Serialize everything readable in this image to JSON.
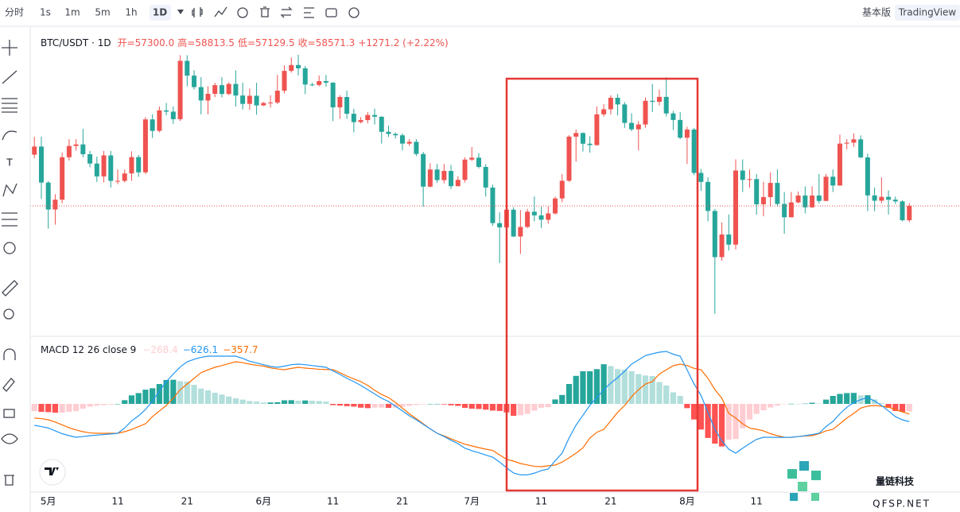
{
  "toolbar": {
    "intervals": [
      "分时",
      "1s",
      "1m",
      "5m",
      "1h",
      "1D"
    ],
    "views": [
      "基本版",
      "TradingView"
    ]
  },
  "watermark": {
    "name": "量链科技",
    "site": "QFSP.NET"
  },
  "chart_data": [
    {
      "type": "candlestick",
      "title": "BTC/USDT · 1D",
      "ohlc_labels": [
        "开=57300.0",
        "高=58813.5",
        "低=57129.5",
        "收=58571.3"
      ],
      "change_label": "+1271.2 (+2.22%)",
      "up_color": "#ef5350",
      "down_color": "#26a69a",
      "xlim": [
        -0.6,
        133.3
      ],
      "ylim": [
        47200,
        74030
      ],
      "open": [
        63120,
        63840,
        60640,
        58250,
        59120,
        62890,
        63890,
        64030,
        63160,
        62330,
        61190,
        63050,
        60790,
        60790,
        61450,
        62900,
        61550,
        66250,
        65230,
        67050,
        66940,
        66270,
        71450,
        70140,
        69120,
        67930,
        68520,
        69290,
        68510,
        69400,
        68370,
        67630,
        68350,
        67490,
        67710,
        67750,
        68800,
        70560,
        71080,
        70790,
        69350,
        69310,
        69650,
        69510,
        67320,
        68240,
        66750,
        66010,
        66190,
        66640,
        66490,
        65150,
        64960,
        64840,
        64100,
        64260,
        63180,
        60280,
        61800,
        60860,
        61670,
        60320,
        60880,
        62680,
        62850,
        62030,
        60200,
        57040,
        56660,
        58230,
        55850,
        56700,
        58050,
        57730,
        57340,
        57900,
        59230,
        60800,
        64720,
        65040,
        64090,
        63970,
        66700,
        67150,
        68170,
        67580,
        65940,
        65370,
        65800,
        67900,
        67810,
        68250,
        66780,
        66200,
        64620,
        65350,
        61500,
        60700,
        58120,
        54020,
        56030,
        55130,
        61710,
        60880,
        60950,
        58710,
        59350,
        60610,
        58740,
        57560,
        58880,
        59490,
        58440,
        59490,
        59010,
        61160,
        60380,
        64100,
        64180,
        64480,
        62880,
        59500,
        59030,
        59370,
        59120,
        58970,
        57300
      ],
      "high": [
        64700,
        64730,
        60780,
        59600,
        63300,
        64500,
        64500,
        65400,
        63450,
        62940,
        63450,
        63450,
        61800,
        61800,
        63420,
        63100,
        66450,
        66700,
        67400,
        67700,
        67400,
        71950,
        71950,
        70620,
        70000,
        69200,
        69500,
        70000,
        69550,
        70600,
        69500,
        69000,
        69500,
        67800,
        68400,
        70200,
        71050,
        71750,
        71990,
        71000,
        69500,
        70150,
        70200,
        69560,
        68400,
        68800,
        67200,
        66450,
        66900,
        67200,
        66500,
        65700,
        65100,
        65000,
        64500,
        64500,
        63370,
        62350,
        62300,
        62300,
        62200,
        61200,
        62880,
        63800,
        63250,
        62280,
        60450,
        58000,
        58500,
        58450,
        58200,
        58300,
        59400,
        58500,
        58500,
        59400,
        61400,
        64850,
        65350,
        65100,
        64750,
        67400,
        67600,
        68400,
        68500,
        67800,
        66800,
        66100,
        68200,
        69400,
        68900,
        70000,
        67000,
        66900,
        65600,
        65500,
        61850,
        61100,
        58300,
        57100,
        57800,
        62700,
        62700,
        61800,
        61400,
        60700,
        61550,
        61800,
        59800,
        59800,
        59850,
        60300,
        60300,
        61400,
        61400,
        61800,
        64900,
        64500,
        65000,
        64830,
        63200,
        60200,
        61100,
        59950,
        59400,
        59060,
        58813.5
      ],
      "low": [
        62800,
        59190,
        56550,
        56900,
        58800,
        62600,
        63480,
        62900,
        62000,
        60700,
        60650,
        60200,
        60500,
        60650,
        60800,
        61150,
        61400,
        64600,
        65100,
        66600,
        65850,
        66100,
        69200,
        68900,
        66700,
        66700,
        68230,
        68200,
        68400,
        67400,
        67130,
        67100,
        66670,
        67450,
        67300,
        67600,
        68550,
        70400,
        70150,
        68500,
        69210,
        69180,
        69150,
        66100,
        66300,
        66300,
        65100,
        65900,
        65900,
        65800,
        64100,
        64700,
        64550,
        63500,
        63900,
        63000,
        58500,
        60200,
        60620,
        60580,
        60070,
        60300,
        60650,
        62550,
        61900,
        59400,
        56800,
        53500,
        56300,
        55800,
        54300,
        56600,
        57200,
        56600,
        57000,
        57800,
        58900,
        60700,
        62500,
        63400,
        63300,
        63900,
        66500,
        66700,
        66600,
        65500,
        65200,
        63500,
        65500,
        66900,
        67500,
        66500,
        65300,
        64500,
        62300,
        61300,
        59900,
        57200,
        49000,
        53700,
        54600,
        54700,
        59800,
        60200,
        57800,
        57650,
        58500,
        58500,
        56100,
        57550,
        58800,
        57900,
        58400,
        58800,
        59000,
        59800,
        60350,
        63600,
        63800,
        62800,
        58100,
        58100,
        58800,
        57800,
        58740,
        57200,
        57129.5
      ],
      "close": [
        63840,
        60640,
        58250,
        59120,
        62890,
        63890,
        64030,
        63160,
        62330,
        61190,
        63050,
        60790,
        60790,
        61450,
        62900,
        61550,
        66250,
        65230,
        67050,
        66940,
        66270,
        71450,
        70140,
        69120,
        67930,
        68520,
        69290,
        68510,
        69400,
        68370,
        67630,
        68350,
        67490,
        67710,
        67750,
        68800,
        70560,
        71080,
        70790,
        69350,
        69310,
        69650,
        69510,
        67320,
        68240,
        66750,
        66010,
        66190,
        66640,
        66490,
        65150,
        64960,
        64840,
        64100,
        64260,
        63180,
        60280,
        61800,
        60860,
        61670,
        60320,
        60880,
        62680,
        62850,
        62030,
        60200,
        57040,
        56660,
        58230,
        55850,
        56700,
        58050,
        57730,
        57340,
        57900,
        59230,
        60800,
        64720,
        65040,
        64090,
        63970,
        66700,
        67150,
        68170,
        67580,
        65940,
        65370,
        65800,
        67900,
        67810,
        68250,
        66780,
        66200,
        64620,
        65350,
        61500,
        60700,
        58120,
        54020,
        56030,
        55130,
        61710,
        60880,
        60950,
        58710,
        59350,
        60610,
        58740,
        57560,
        58880,
        59490,
        58440,
        59490,
        59010,
        61160,
        60380,
        64100,
        64180,
        64480,
        62880,
        59500,
        59030,
        59370,
        59120,
        58970,
        57300,
        58571.3
      ]
    },
    {
      "type": "macd",
      "title": "MACD 12 26 close 9",
      "xlim": [
        -0.6,
        133.3
      ],
      "ylim": [
        -2912,
        2324
      ],
      "xticks": [
        {
          "value": 2,
          "label": "5月"
        },
        {
          "value": 12,
          "label": "11"
        },
        {
          "value": 22,
          "label": "21"
        },
        {
          "value": 33,
          "label": "6月"
        },
        {
          "value": 43,
          "label": "11"
        },
        {
          "value": 53,
          "label": "21"
        },
        {
          "value": 63,
          "label": "7月"
        },
        {
          "value": 73,
          "label": "11"
        },
        {
          "value": 83,
          "label": "21"
        },
        {
          "value": 94,
          "label": "8月"
        },
        {
          "value": 104,
          "label": "11"
        }
      ],
      "histogram": {
        "label": "−268.4",
        "colors": [
          "#26a69a",
          "#b2dfdb",
          "#ffcdd2",
          "#ff5252"
        ],
        "values": [
          -256,
          -280,
          -290,
          -310,
          -310,
          -280,
          -256,
          -170,
          -100,
          -64,
          -44,
          -24,
          0,
          130,
          300,
          380,
          500,
          550,
          700,
          840,
          850,
          800,
          784,
          670,
          540,
          480,
          392,
          330,
          260,
          196,
          150,
          100,
          80,
          50,
          50,
          58,
          126,
          130,
          112,
          120,
          110,
          100,
          78,
          -44,
          -60,
          -80,
          -96,
          -134,
          -150,
          -130,
          -130,
          -140,
          -130,
          -100,
          -70,
          -40,
          -20,
          0,
          0,
          -20,
          -50,
          -70,
          -140,
          -170,
          -180,
          -204,
          -236,
          -250,
          -300,
          -420,
          -400,
          -350,
          -240,
          -138,
          -116,
          156,
          314,
          700,
          986,
          1150,
          1150,
          1224,
          1396,
          1330,
          1224,
          1206,
          1150,
          1050,
          1000,
          980,
          770,
          648,
          406,
          280,
          -150,
          -550,
          -904,
          -1200,
          -1400,
          -1500,
          -1260,
          -1236,
          -860,
          -550,
          -354,
          -226,
          -126,
          -60,
          -4,
          4,
          0,
          10,
          40,
          14,
          150,
          280,
          350,
          380,
          386,
          300,
          304,
          156,
          24,
          -138,
          -250,
          -280,
          -268.4
        ]
      },
      "macd": {
        "label": "−626.1",
        "color": "#2196f3",
        "values": [
          -756,
          -800,
          -850,
          -950,
          -1050,
          -1120,
          -1176,
          -1150,
          -1120,
          -1100,
          -1080,
          -1060,
          -1036,
          -850,
          -600,
          -420,
          -200,
          100,
          450,
          784,
          1050,
          1300,
          1484,
          1570,
          1640,
          1680,
          1680,
          1680,
          1680,
          1680,
          1600,
          1500,
          1440,
          1380,
          1320,
          1288,
          1330,
          1380,
          1400,
          1380,
          1350,
          1320,
          1288,
          1160,
          1040,
          900,
          784,
          650,
          500,
          350,
          200,
          84,
          -80,
          -250,
          -420,
          -560,
          -720,
          -880,
          -1036,
          -1150,
          -1280,
          -1400,
          -1560,
          -1650,
          -1720,
          -1800,
          -1876,
          -2050,
          -2250,
          -2436,
          -2500,
          -2500,
          -2440,
          -2350,
          -2296,
          -2000,
          -1736,
          -1200,
          -750,
          -400,
          -50,
          224,
          500,
          730,
          924,
          1150,
          1400,
          1550,
          1700,
          1764,
          1820,
          1848,
          1750,
          1680,
          1200,
          700,
          300,
          -300,
          -896,
          -1300,
          -1596,
          -1736,
          -1560,
          -1400,
          -1250,
          -1176,
          -1176,
          -1180,
          -1180,
          -1176,
          -1150,
          -1120,
          -1080,
          -1036,
          -800,
          -616,
          -350,
          -120,
          50,
          150,
          224,
          100,
          -56,
          -250,
          -450,
          -560,
          -626.1
        ]
      },
      "signal": {
        "label": "−357.7",
        "color": "#ff6d00",
        "values": [
          -500,
          -520,
          -560,
          -640,
          -740,
          -840,
          -920,
          -980,
          -1020,
          -1036,
          -1036,
          -1036,
          -1036,
          -980,
          -900,
          -800,
          -700,
          -450,
          -250,
          -56,
          200,
          500,
          700,
          900,
          1100,
          1200,
          1288,
          1350,
          1420,
          1484,
          1450,
          1400,
          1360,
          1330,
          1270,
          1230,
          1204,
          1250,
          1288,
          1260,
          1240,
          1220,
          1210,
          1204,
          1100,
          980,
          880,
          784,
          650,
          480,
          330,
          224,
          50,
          -150,
          -350,
          -520,
          -700,
          -880,
          -1036,
          -1130,
          -1230,
          -1330,
          -1420,
          -1480,
          -1540,
          -1596,
          -1640,
          -1800,
          -1950,
          -2016,
          -2100,
          -2150,
          -2200,
          -2212,
          -2180,
          -2156,
          -2050,
          -1900,
          -1736,
          -1550,
          -1200,
          -1000,
          -896,
          -600,
          -300,
          -56,
          250,
          500,
          700,
          784,
          1050,
          1200,
          1344,
          1400,
          1350,
          1250,
          1204,
          900,
          504,
          200,
          -336,
          -500,
          -700,
          -850,
          -896,
          -950,
          -1050,
          -1120,
          -1176,
          -1180,
          -1150,
          -1130,
          -1120,
          -1050,
          -950,
          -896,
          -700,
          -500,
          -336,
          -150,
          -80,
          -56,
          -80,
          -112,
          -200,
          -280,
          -357.7
        ]
      }
    }
  ]
}
